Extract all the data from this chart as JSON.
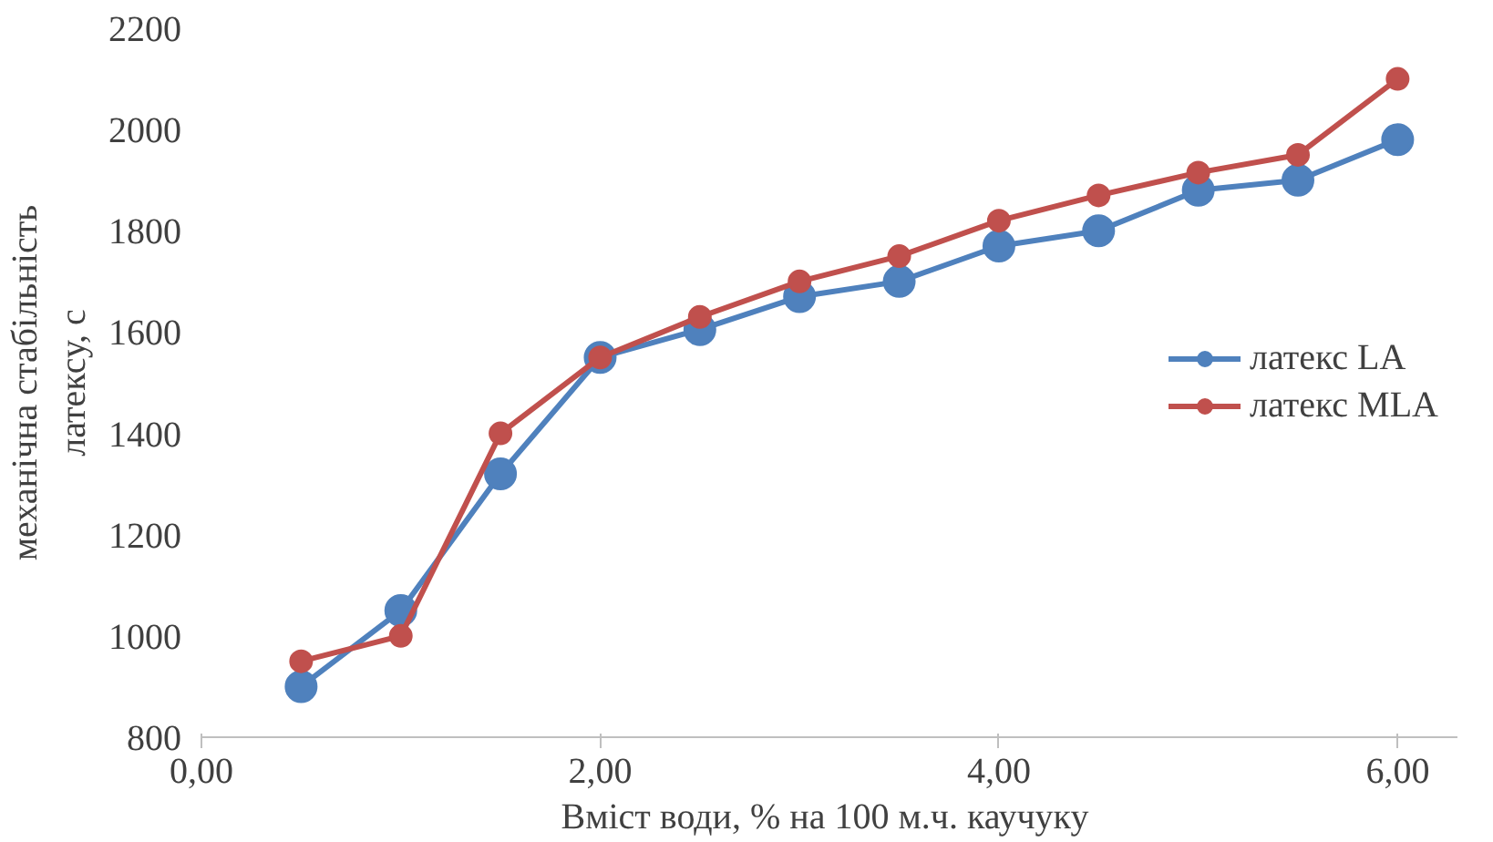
{
  "chart_data": {
    "type": "line",
    "xlabel": "Вміст  води, % на 100 м.ч. каучуку",
    "ylabel": "механічна стабільність\nлатексу, с",
    "x": [
      0.5,
      1.0,
      1.5,
      2.0,
      2.5,
      3.0,
      3.5,
      4.0,
      4.5,
      5.0,
      5.5,
      6.0
    ],
    "series": [
      {
        "name": "латекс LA",
        "color": "#4f81bd",
        "values": [
          900,
          1050,
          1320,
          1550,
          1605,
          1670,
          1700,
          1770,
          1800,
          1880,
          1900,
          1980
        ]
      },
      {
        "name": "латекс MLA",
        "color": "#c0504d",
        "values": [
          950,
          1000,
          1400,
          1550,
          1630,
          1700,
          1750,
          1820,
          1870,
          1915,
          1950,
          2100
        ]
      }
    ],
    "xlim": [
      0,
      6.3
    ],
    "xticks": [
      {
        "value": 0,
        "label": "0,00"
      },
      {
        "value": 2,
        "label": "2,00"
      },
      {
        "value": 4,
        "label": "4,00"
      },
      {
        "value": 6,
        "label": "6,00"
      }
    ],
    "ylim": [
      800,
      2200
    ],
    "yticks": [
      800,
      1000,
      1200,
      1400,
      1600,
      1800,
      2000,
      2200
    ],
    "grid": false,
    "legend": "right",
    "marker": "circle",
    "line_style": "solid"
  }
}
